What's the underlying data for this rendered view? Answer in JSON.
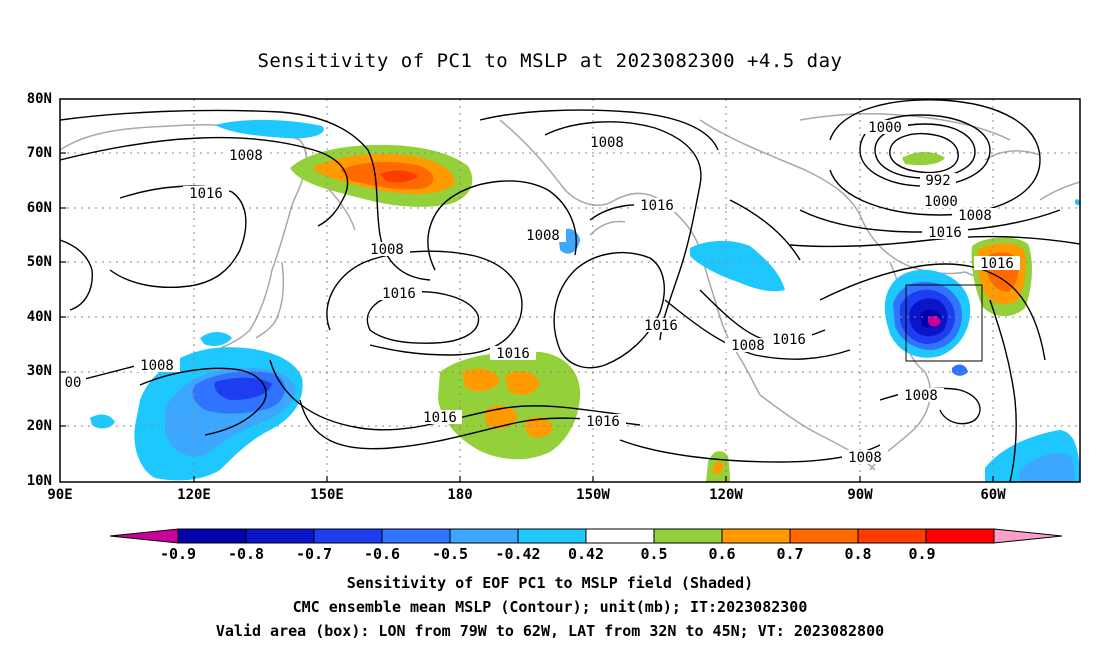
{
  "title": "Sensitivity of PC1 to MSLP at 2023082300 +4.5 day",
  "lat_labels": [
    "80N",
    "70N",
    "60N",
    "50N",
    "40N",
    "30N",
    "20N",
    "10N"
  ],
  "lon_labels": [
    "90E",
    "120E",
    "150E",
    "180",
    "150W",
    "120W",
    "90W",
    "60W"
  ],
  "contour_labels": [
    "1008",
    "1016",
    "1008",
    "1016",
    "1008",
    "1008",
    "1016",
    "1016",
    "1016",
    "1016",
    "1000",
    "992",
    "1000",
    "1008",
    "1016",
    "1016",
    "1016",
    "1008",
    "1008",
    "1008",
    "00"
  ],
  "colorbar": {
    "labels": [
      "-0.9",
      "-0.8",
      "-0.7",
      "-0.6",
      "-0.5",
      "-0.42",
      "0.42",
      "0.5",
      "0.6",
      "0.7",
      "0.8",
      "0.9"
    ],
    "colors": [
      "#cc0099",
      "#0000aa",
      "#0a14c8",
      "#1e3cf0",
      "#2f73ff",
      "#3da6ff",
      "#1ec8ff",
      "#ffffff",
      "#94d03a",
      "#ff9a00",
      "#ff6a00",
      "#ff3c00",
      "#ff0000",
      "#f9a0c8"
    ]
  },
  "captions": [
    "Sensitivity of EOF PC1 to MSLP field (Shaded)",
    "CMC ensemble mean MSLP (Contour); unit(mb); IT:2023082300",
    "Valid area (box): LON from 79W to 62W, LAT from 32N to 45N; VT: 2023082800"
  ]
}
